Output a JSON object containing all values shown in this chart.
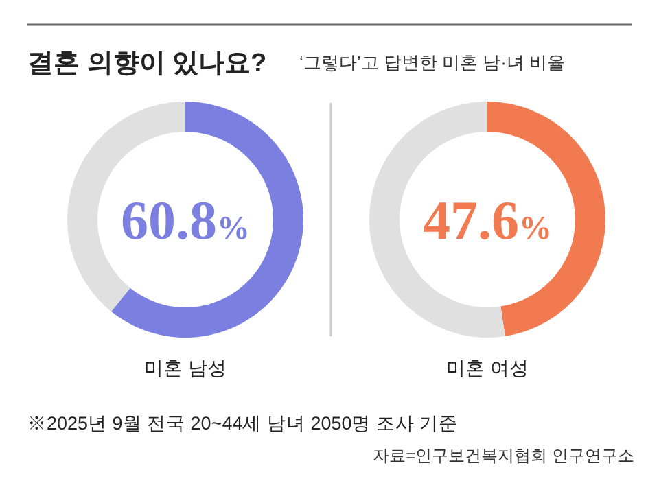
{
  "chart_data": [
    {
      "type": "other",
      "title": "결혼 의향이 있나요?",
      "subtitle": "‘그렇다’고 답변한 미혼 남·녀 비율",
      "annotations": [
        "※2025년 9월 전국 20~44세 남녀 2050명 조사 기준",
        "자료=인구보건복지협회 인구연구소"
      ]
    },
    {
      "type": "donut",
      "xlabel": "미혼 남성",
      "categories": [
        null,
        null
      ],
      "values": [
        60.8,
        39.2
      ],
      "colors": [
        "#7b80e0",
        "#e0e0e0"
      ],
      "value_labels": [
        "60.8%",
        null
      ]
    },
    {
      "type": "donut",
      "xlabel": "미혼 여성",
      "categories": [
        null,
        null
      ],
      "values": [
        47.6,
        52.4
      ],
      "colors": [
        "#f27a50",
        "#e0e0e0"
      ],
      "value_labels": [
        "47.6%",
        null
      ]
    }
  ]
}
